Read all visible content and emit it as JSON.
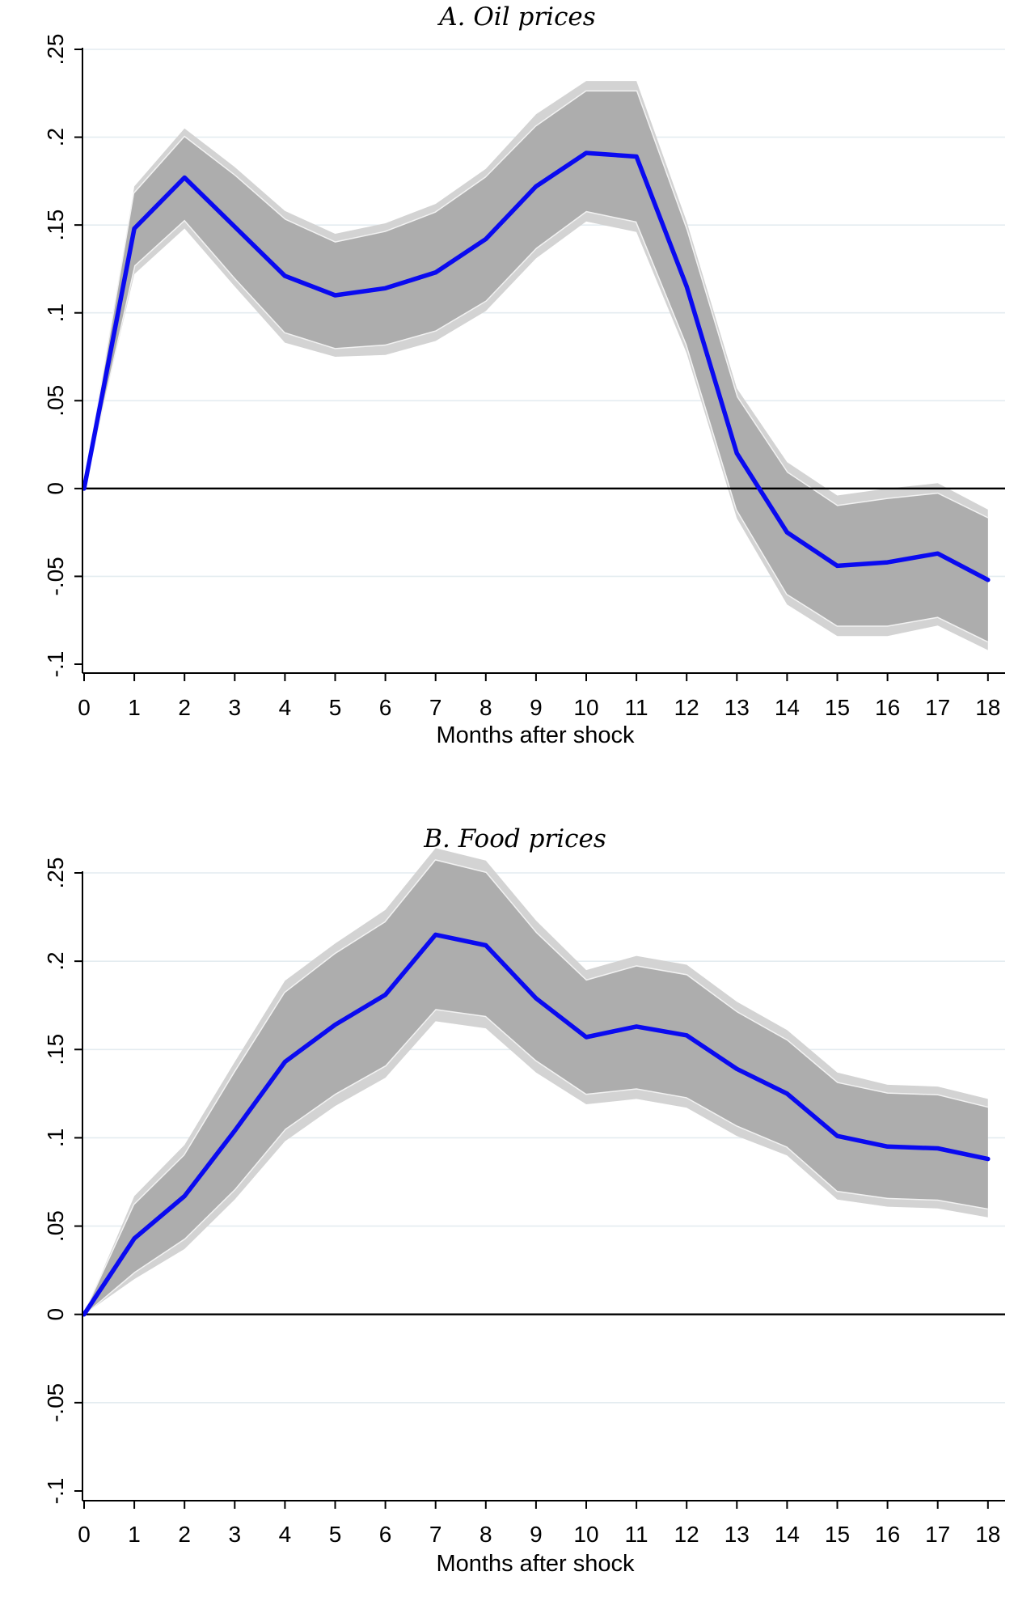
{
  "chart_data": [
    {
      "type": "line",
      "title": "A.   Oil prices",
      "xlabel": "Months after shock",
      "ylabel": "",
      "x": [
        0,
        1,
        2,
        3,
        4,
        5,
        6,
        7,
        8,
        9,
        10,
        11,
        12,
        13,
        14,
        15,
        16,
        17,
        18
      ],
      "x_tick_labels": [
        "0",
        "1",
        "2",
        "3",
        "4",
        "5",
        "6",
        "7",
        "8",
        "9",
        "10",
        "11",
        "12",
        "13",
        "14",
        "15",
        "16",
        "17",
        "18"
      ],
      "ylim": [
        -0.1,
        0.25
      ],
      "y_ticks": [
        -0.1,
        -0.05,
        0,
        0.05,
        0.1,
        0.15,
        0.2,
        0.25
      ],
      "y_tick_labels": [
        "-.1",
        "-.05",
        "0",
        ".05",
        ".1",
        ".15",
        ".2",
        ".25"
      ],
      "grid": true,
      "zero_line": true,
      "series": [
        {
          "name": "point estimate",
          "values": [
            0,
            0.148,
            0.177,
            0.149,
            0.121,
            0.11,
            0.114,
            0.123,
            0.142,
            0.172,
            0.191,
            0.189,
            0.115,
            0.02,
            -0.025,
            -0.044,
            -0.042,
            -0.037,
            -0.052
          ]
        },
        {
          "name": "inner band upper",
          "values": [
            0,
            0.168,
            0.2,
            0.178,
            0.153,
            0.14,
            0.146,
            0.157,
            0.177,
            0.206,
            0.226,
            0.226,
            0.147,
            0.052,
            0.009,
            -0.01,
            -0.006,
            -0.003,
            -0.017
          ]
        },
        {
          "name": "inner band lower",
          "values": [
            0,
            0.127,
            0.153,
            0.12,
            0.089,
            0.08,
            0.082,
            0.09,
            0.107,
            0.137,
            0.158,
            0.152,
            0.082,
            -0.012,
            -0.06,
            -0.078,
            -0.078,
            -0.073,
            -0.087
          ]
        },
        {
          "name": "outer band upper",
          "values": [
            0,
            0.172,
            0.205,
            0.183,
            0.158,
            0.145,
            0.151,
            0.162,
            0.182,
            0.213,
            0.232,
            0.232,
            0.152,
            0.057,
            0.015,
            -0.004,
            0.0,
            0.003,
            -0.012
          ]
        },
        {
          "name": "outer band lower",
          "values": [
            0,
            0.122,
            0.148,
            0.115,
            0.083,
            0.075,
            0.076,
            0.084,
            0.101,
            0.131,
            0.152,
            0.146,
            0.077,
            -0.017,
            -0.066,
            -0.084,
            -0.084,
            -0.078,
            -0.092
          ]
        }
      ]
    },
    {
      "type": "line",
      "title": "B.   Food prices",
      "xlabel": "Months after shock",
      "ylabel": "",
      "x": [
        0,
        1,
        2,
        3,
        4,
        5,
        6,
        7,
        8,
        9,
        10,
        11,
        12,
        13,
        14,
        15,
        16,
        17,
        18
      ],
      "x_tick_labels": [
        "0",
        "1",
        "2",
        "3",
        "4",
        "5",
        "6",
        "7",
        "8",
        "9",
        "10",
        "11",
        "12",
        "13",
        "14",
        "15",
        "16",
        "17",
        "18"
      ],
      "ylim": [
        -0.1,
        0.25
      ],
      "y_ticks": [
        -0.1,
        -0.05,
        0,
        0.05,
        0.1,
        0.15,
        0.2,
        0.25
      ],
      "y_tick_labels": [
        "-.1",
        "-.05",
        "0",
        ".05",
        ".1",
        ".15",
        ".2",
        ".25"
      ],
      "grid": true,
      "zero_line": true,
      "series": [
        {
          "name": "point estimate",
          "values": [
            0,
            0.043,
            0.067,
            0.104,
            0.143,
            0.164,
            0.181,
            0.215,
            0.209,
            0.179,
            0.157,
            0.163,
            0.158,
            0.139,
            0.125,
            0.101,
            0.095,
            0.094,
            0.088
          ]
        },
        {
          "name": "inner band upper",
          "values": [
            0,
            0.062,
            0.09,
            0.137,
            0.182,
            0.204,
            0.222,
            0.257,
            0.25,
            0.216,
            0.189,
            0.197,
            0.192,
            0.171,
            0.155,
            0.131,
            0.125,
            0.124,
            0.117
          ]
        },
        {
          "name": "inner band lower",
          "values": [
            0,
            0.024,
            0.043,
            0.071,
            0.105,
            0.125,
            0.141,
            0.173,
            0.169,
            0.144,
            0.125,
            0.128,
            0.123,
            0.107,
            0.095,
            0.07,
            0.066,
            0.065,
            0.06
          ]
        },
        {
          "name": "outer band upper",
          "values": [
            0,
            0.067,
            0.096,
            0.143,
            0.189,
            0.21,
            0.229,
            0.264,
            0.257,
            0.223,
            0.195,
            0.203,
            0.198,
            0.177,
            0.161,
            0.137,
            0.13,
            0.129,
            0.122
          ]
        },
        {
          "name": "outer band lower",
          "values": [
            0,
            0.02,
            0.037,
            0.065,
            0.098,
            0.118,
            0.134,
            0.166,
            0.162,
            0.137,
            0.119,
            0.122,
            0.117,
            0.101,
            0.09,
            0.065,
            0.061,
            0.06,
            0.055
          ]
        }
      ]
    }
  ]
}
